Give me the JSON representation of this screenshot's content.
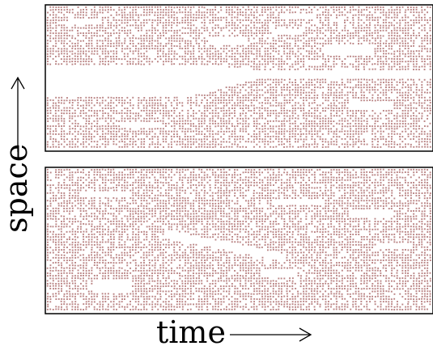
{
  "chart_data": [
    {
      "type": "scatter",
      "panel": "top",
      "title": "",
      "xlabel": "",
      "ylabel": "",
      "grid": false,
      "legend": "none",
      "point_color": "#b98383",
      "band_gap": {
        "description_points": [
          {
            "time": 0.0,
            "space_low": 0.36,
            "space_high": 0.52
          },
          {
            "time": 0.3,
            "space_low": 0.35,
            "space_high": 0.52
          },
          {
            "time": 0.42,
            "space_low": 0.42,
            "space_high": 0.52
          },
          {
            "time": 0.5,
            "space_low": 0.48,
            "space_high": 0.5
          },
          {
            "time": 0.6,
            "space_low": 0.49,
            "space_high": 0.51
          },
          {
            "time": 1.0,
            "space_low": 0.48,
            "space_high": 0.5
          }
        ]
      }
    },
    {
      "type": "scatter",
      "panel": "bottom",
      "title": "",
      "xlabel": "time",
      "ylabel": "",
      "grid": false,
      "legend": "none",
      "point_color": "#b98383",
      "band_gap": {
        "description_points": [
          {
            "time": 0.25,
            "space_low": 0.52,
            "space_high": 0.55
          },
          {
            "time": 0.4,
            "space_low": 0.58,
            "space_high": 0.62
          },
          {
            "time": 0.55,
            "space_low": 0.56,
            "space_high": 0.6
          }
        ]
      }
    }
  ],
  "labels": {
    "space": "space",
    "time": "time"
  },
  "colors": {
    "points": "#b98383",
    "frame": "#000000",
    "background": "#ffffff"
  }
}
